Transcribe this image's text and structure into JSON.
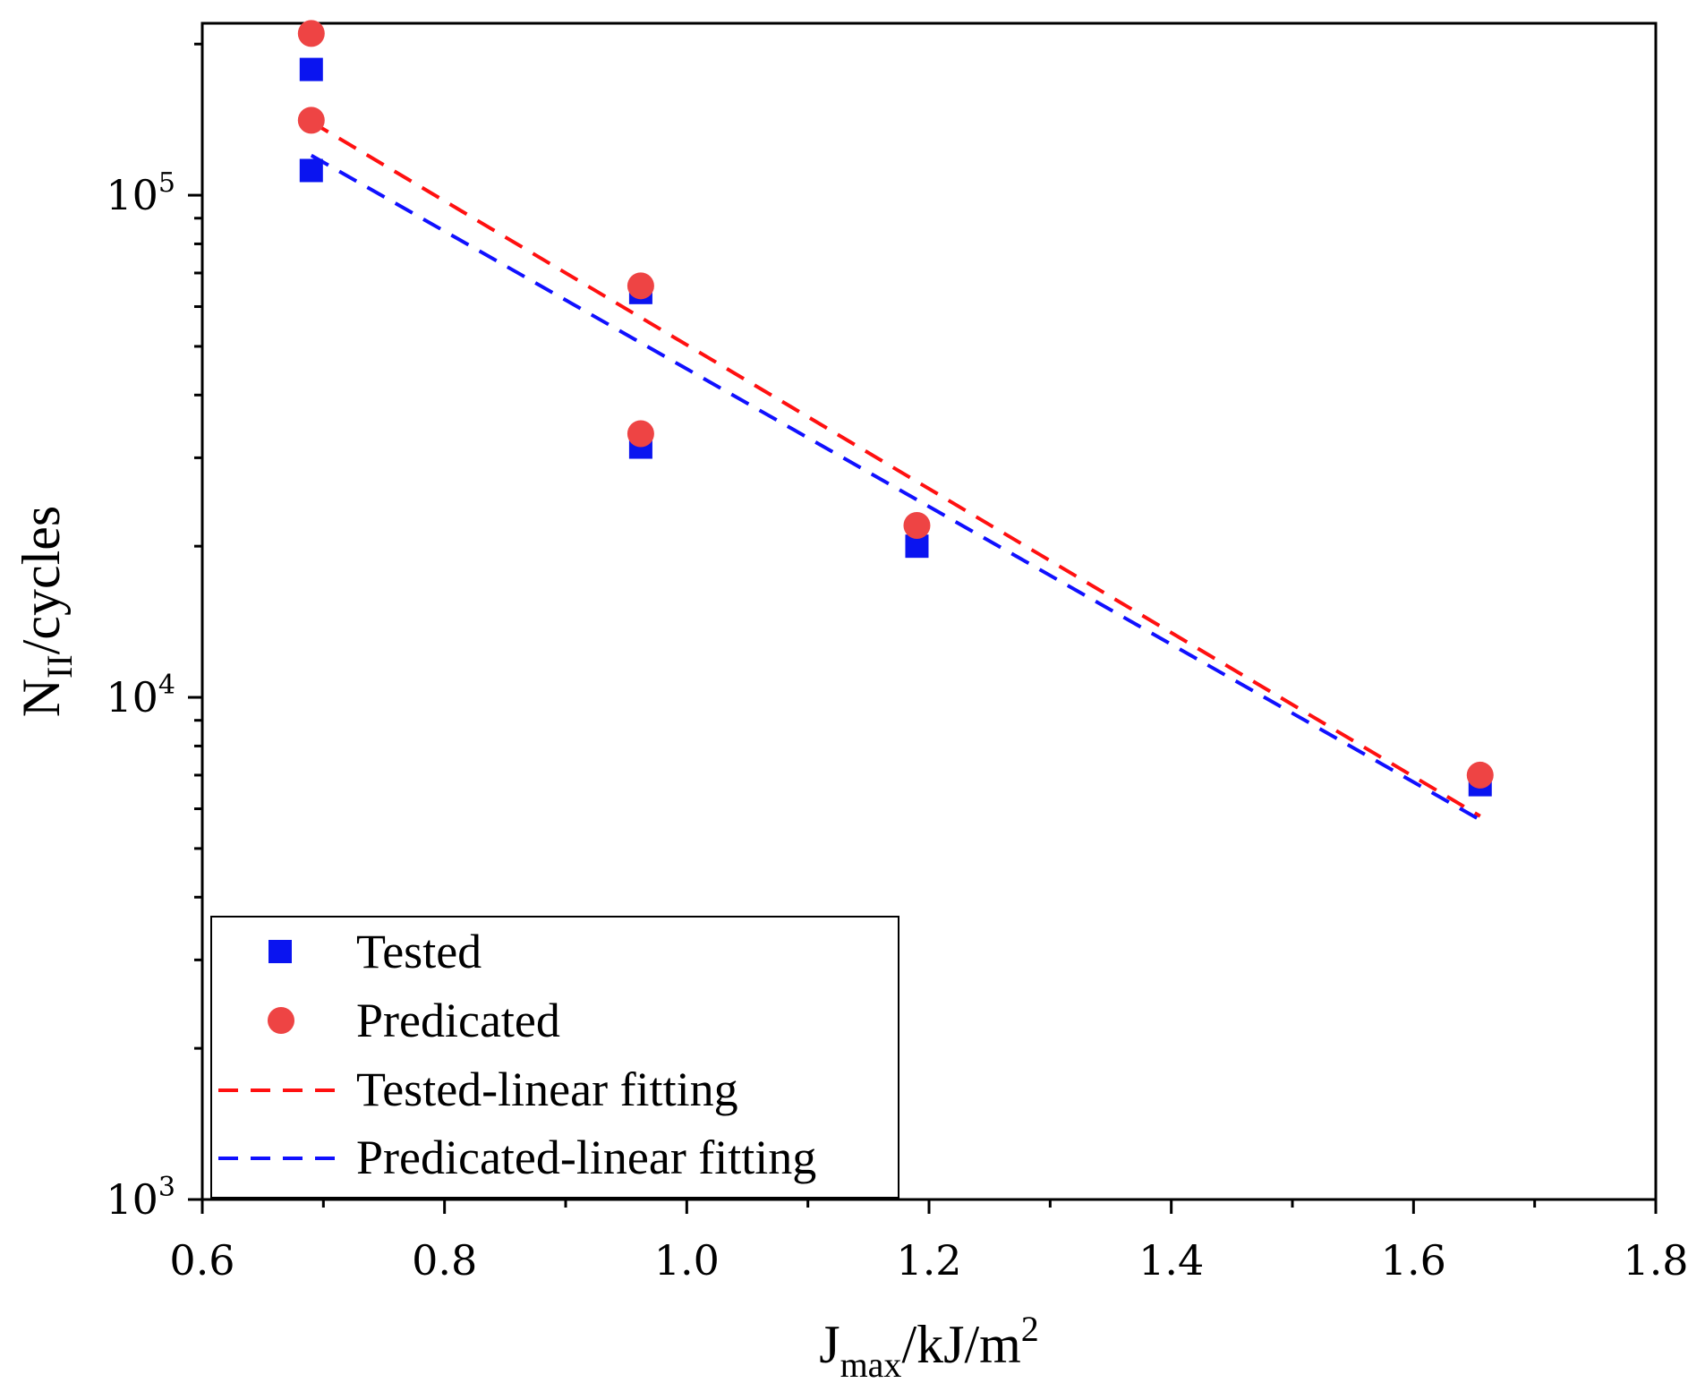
{
  "chart_data": {
    "type": "scatter",
    "x_axis": {
      "label_main": "J",
      "label_sub": "max",
      "label_rest": "/kJ/m",
      "label_sup": "2",
      "range": [
        0.6,
        1.8
      ],
      "ticks": [
        0.6,
        0.8,
        1.0,
        1.2,
        1.4,
        1.6,
        1.8
      ],
      "tick_labels": [
        "0.6",
        "0.8",
        "1.0",
        "1.2",
        "1.4",
        "1.6",
        "1.8"
      ],
      "minor_ticks": [
        0.7,
        0.9,
        1.1,
        1.3,
        1.5,
        1.7
      ]
    },
    "y_axis": {
      "label_main": "N",
      "label_sub": "II",
      "label_rest": "/cycles",
      "scale": "log",
      "range": [
        1000,
        220000
      ],
      "ticks": [
        {
          "value": 1000,
          "base": "10",
          "exp": "3"
        },
        {
          "value": 10000,
          "base": "10",
          "exp": "4"
        },
        {
          "value": 100000,
          "base": "10",
          "exp": "5"
        }
      ]
    },
    "series": [
      {
        "name": "Tested",
        "kind": "markers",
        "marker": "square",
        "color": "#0a14f0",
        "points": [
          {
            "x": 0.69,
            "y": 178000
          },
          {
            "x": 0.69,
            "y": 112000
          },
          {
            "x": 0.962,
            "y": 64000
          },
          {
            "x": 0.962,
            "y": 31500
          },
          {
            "x": 1.19,
            "y": 20000
          },
          {
            "x": 1.655,
            "y": 6700
          }
        ]
      },
      {
        "name": "Predicated",
        "kind": "markers",
        "marker": "circle",
        "color": "#ee4444",
        "points": [
          {
            "x": 0.69,
            "y": 210000
          },
          {
            "x": 0.69,
            "y": 141000
          },
          {
            "x": 0.962,
            "y": 66000
          },
          {
            "x": 0.962,
            "y": 33500
          },
          {
            "x": 1.19,
            "y": 22000
          },
          {
            "x": 1.655,
            "y": 7000
          }
        ]
      },
      {
        "name": "Tested-linear fitting",
        "kind": "line",
        "dash": true,
        "color": "#ff1010",
        "points": [
          {
            "x": 0.69,
            "y": 140000
          },
          {
            "x": 1.655,
            "y": 5800
          }
        ]
      },
      {
        "name": "Predicated-linear fitting",
        "kind": "line",
        "dash": true,
        "color": "#1010ff",
        "points": [
          {
            "x": 0.69,
            "y": 120000
          },
          {
            "x": 1.655,
            "y": 5700
          }
        ]
      }
    ],
    "legend": {
      "position": "bottom-left",
      "entries": [
        "Tested",
        "Predicated",
        "Tested-linear fitting",
        "Predicated-linear fitting"
      ]
    }
  }
}
